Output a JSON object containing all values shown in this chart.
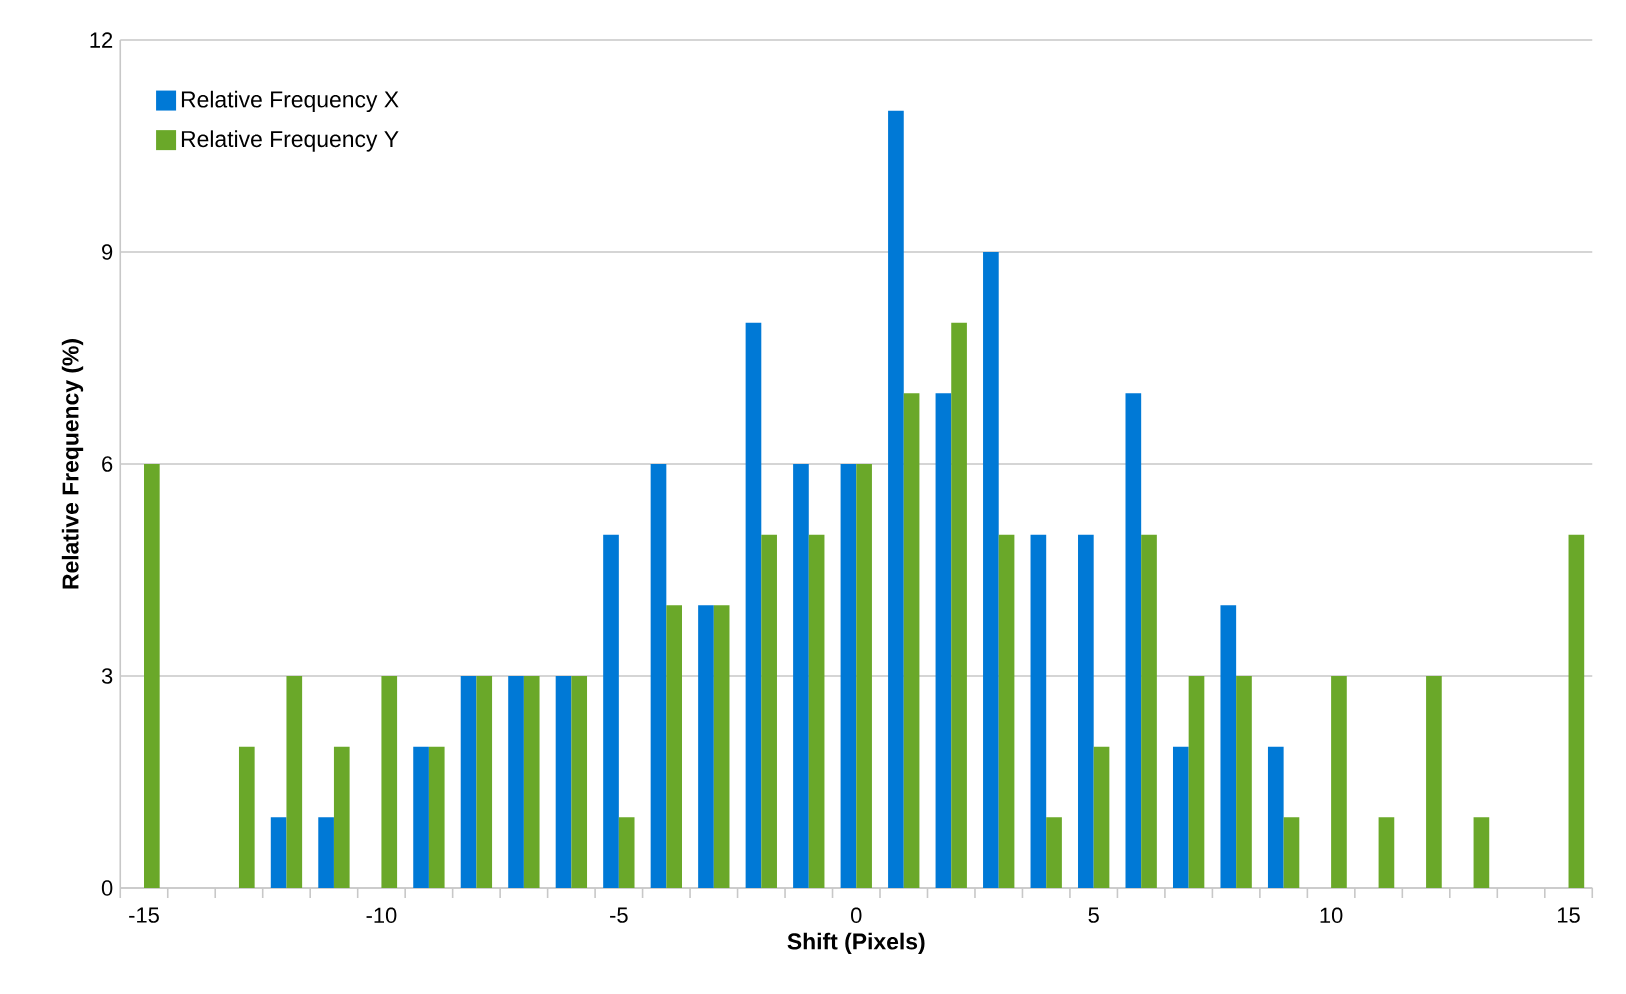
{
  "chart_data": {
    "type": "bar",
    "xlabel": "Shift (Pixels)",
    "ylabel": "Relative Frequency (%)",
    "categories": [
      "-15",
      null,
      null,
      null,
      null,
      "-10",
      null,
      null,
      null,
      null,
      "-5",
      null,
      null,
      null,
      null,
      "0",
      null,
      null,
      null,
      null,
      "5",
      null,
      null,
      null,
      null,
      "10",
      null,
      null,
      null,
      null,
      "15"
    ],
    "series": [
      {
        "name": "Relative Frequency X",
        "color": "#0079d6",
        "values": [
          0,
          0,
          0,
          1,
          1,
          0,
          2,
          3,
          3,
          3,
          5,
          6,
          4,
          8,
          6,
          6,
          11,
          7,
          9,
          5,
          5,
          7,
          2,
          4,
          2,
          0,
          0,
          0,
          0,
          0,
          0
        ]
      },
      {
        "name": "Relative Frequency Y",
        "color": "#6aa829",
        "values": [
          6,
          0,
          2,
          3,
          2,
          3,
          2,
          3,
          3,
          3,
          1,
          4,
          4,
          5,
          5,
          6,
          7,
          8,
          5,
          1,
          2,
          5,
          3,
          3,
          1,
          3,
          1,
          3,
          1,
          0,
          5
        ]
      }
    ],
    "ylim": [
      0,
      12
    ],
    "yticks": [
      0,
      3,
      6,
      9,
      12
    ],
    "grid": "y",
    "legend": "top left"
  }
}
